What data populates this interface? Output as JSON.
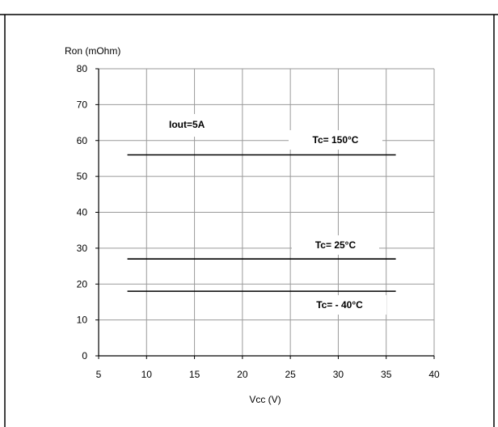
{
  "chart_data": {
    "type": "line",
    "title": "",
    "ylabel": "Ron (mOhm)",
    "xlabel": "Vcc (V)",
    "xlim": [
      5,
      40
    ],
    "ylim": [
      0,
      80
    ],
    "xticks": [
      5,
      10,
      15,
      20,
      25,
      30,
      35,
      40
    ],
    "yticks": [
      0,
      10,
      20,
      30,
      40,
      50,
      60,
      70,
      80
    ],
    "grid": true,
    "series": [
      {
        "name": "Tc= 150°C",
        "x": [
          8,
          36
        ],
        "y": [
          56,
          56
        ]
      },
      {
        "name": "Tc= 25°C",
        "x": [
          8,
          36
        ],
        "y": [
          27,
          27
        ]
      },
      {
        "name": "Tc= - 40°C",
        "x": [
          8,
          36
        ],
        "y": [
          18,
          18
        ]
      }
    ],
    "annotations": [
      {
        "text": "Iout=5A"
      }
    ]
  }
}
